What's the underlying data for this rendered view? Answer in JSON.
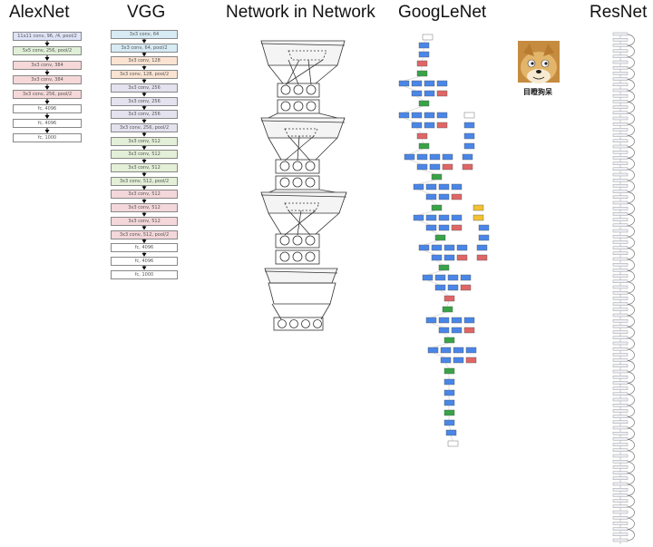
{
  "titles": {
    "alexnet": "AlexNet",
    "vgg": "VGG",
    "nin": "Network in Network",
    "googlenet": "GoogLeNet",
    "resnet": "ResNet"
  },
  "alexnet_layers": [
    {
      "label": "11x11 conv, 96, /4, pool/2",
      "color": "#dfe3f7"
    },
    {
      "label": "5x5 conv, 256, pool/2",
      "color": "#e0f0d8"
    },
    {
      "label": "3x3 conv, 384",
      "color": "#f6d8d8"
    },
    {
      "label": "3x3 conv, 384",
      "color": "#f6d8d8"
    },
    {
      "label": "3x3 conv, 256, pool/2",
      "color": "#f6d8d8"
    },
    {
      "label": "fc, 4096",
      "color": "#ffffff"
    },
    {
      "label": "fc, 4096",
      "color": "#ffffff"
    },
    {
      "label": "fc, 1000",
      "color": "#ffffff"
    }
  ],
  "vgg_layers": [
    {
      "label": "3x3 conv, 64",
      "color": "#d7ebf5"
    },
    {
      "label": "3x3 conv, 64, pool/2",
      "color": "#d7ebf5"
    },
    {
      "label": "3x3 conv, 128",
      "color": "#fbe3d2"
    },
    {
      "label": "3x3 conv, 128, pool/2",
      "color": "#fbe3d2"
    },
    {
      "label": "3x3 conv, 256",
      "color": "#e4e2ee"
    },
    {
      "label": "3x3 conv, 256",
      "color": "#e4e2ee"
    },
    {
      "label": "3x3 conv, 256",
      "color": "#e4e2ee"
    },
    {
      "label": "3x3 conv, 256, pool/2",
      "color": "#e4e2ee"
    },
    {
      "label": "3x3 conv, 512",
      "color": "#e3efd7"
    },
    {
      "label": "3x3 conv, 512",
      "color": "#e3efd7"
    },
    {
      "label": "3x3 conv, 512",
      "color": "#e3efd7"
    },
    {
      "label": "3x3 conv, 512, pool/2",
      "color": "#e3efd7"
    },
    {
      "label": "3x3 conv, 512",
      "color": "#f4d7da"
    },
    {
      "label": "3x3 conv, 512",
      "color": "#f4d7da"
    },
    {
      "label": "3x3 conv, 512",
      "color": "#f4d7da"
    },
    {
      "label": "3x3 conv, 512, pool/2",
      "color": "#f4d7da"
    },
    {
      "label": "fc, 4096",
      "color": "#ffffff"
    },
    {
      "label": "fc, 4096",
      "color": "#ffffff"
    },
    {
      "label": "fc, 1000",
      "color": "#ffffff"
    }
  ],
  "meme_caption": "目瞪狗呆",
  "colors": {
    "googlenet_blue": "#4a86e8",
    "googlenet_red": "#e06666",
    "googlenet_green": "#38a347",
    "googlenet_yellow": "#f1c232",
    "resnet_loop": "#777777"
  }
}
